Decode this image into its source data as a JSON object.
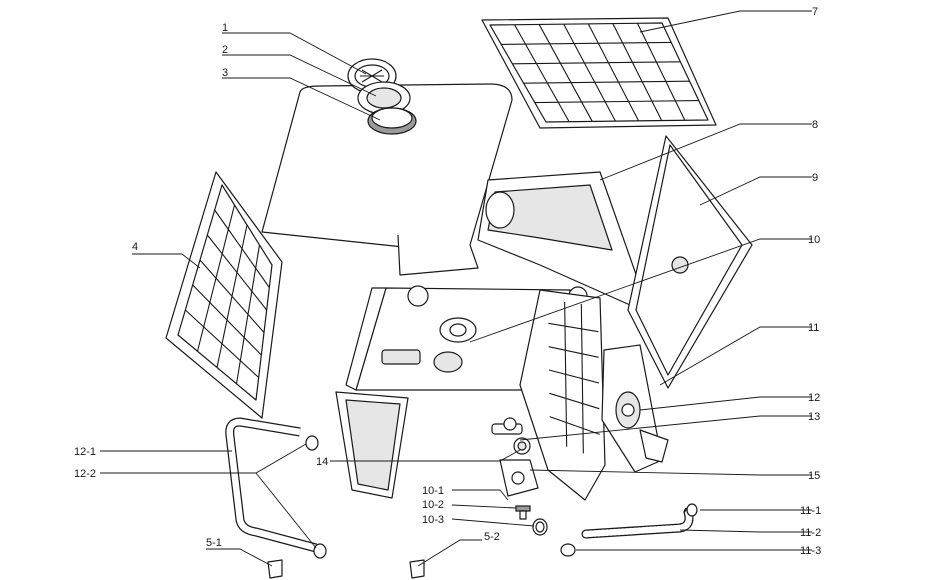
{
  "callouts": {
    "c1": "1",
    "c2": "2",
    "c3": "3",
    "c4": "4",
    "c5_1": "5-1",
    "c5_2": "5-2",
    "c7": "7",
    "c8": "8",
    "c9": "9",
    "c10": "10",
    "c10_1": "10-1",
    "c10_2": "10-2",
    "c10_3": "10-3",
    "c11": "11",
    "c11_1": "11-1",
    "c11_2": "11-2",
    "c11_3": "11-3",
    "c12": "12",
    "c12_1": "12-1",
    "c12_2": "12-2",
    "c13": "13",
    "c14": "14",
    "c15": "15"
  }
}
